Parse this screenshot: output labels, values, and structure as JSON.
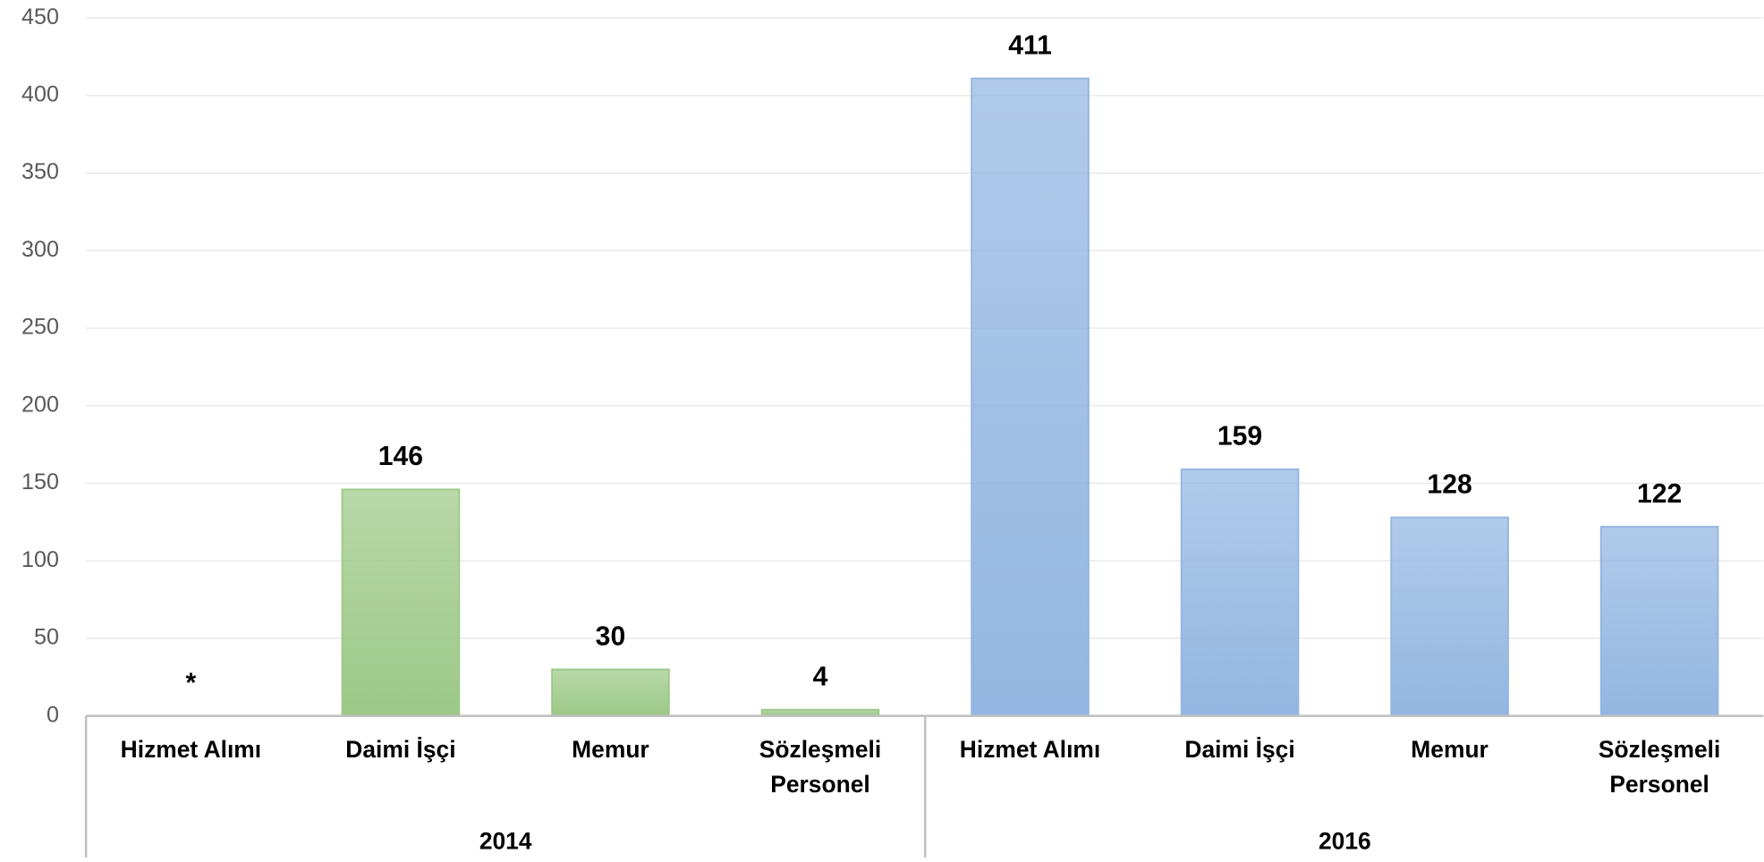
{
  "chart_data": {
    "type": "bar",
    "ylim": [
      0,
      450
    ],
    "yticks": [
      0,
      50,
      100,
      150,
      200,
      250,
      300,
      350,
      400,
      450
    ],
    "grid": true,
    "groups": [
      {
        "name": "2014",
        "color": "#9cc987",
        "categories": [
          "Hizmet Alımı",
          "Daimi İşçi",
          "Memur",
          "Sözleşmeli Personel"
        ],
        "values": [
          null,
          146,
          30,
          4
        ],
        "value_labels": [
          "*",
          "146",
          "30",
          "4"
        ]
      },
      {
        "name": "2016",
        "color": "#93b6e2",
        "categories": [
          "Hizmet Alımı",
          "Daimi İşçi",
          "Memur",
          "Sözleşmeli Personel"
        ],
        "values": [
          411,
          159,
          128,
          122
        ],
        "value_labels": [
          "411",
          "159",
          "128",
          "122"
        ]
      }
    ]
  }
}
